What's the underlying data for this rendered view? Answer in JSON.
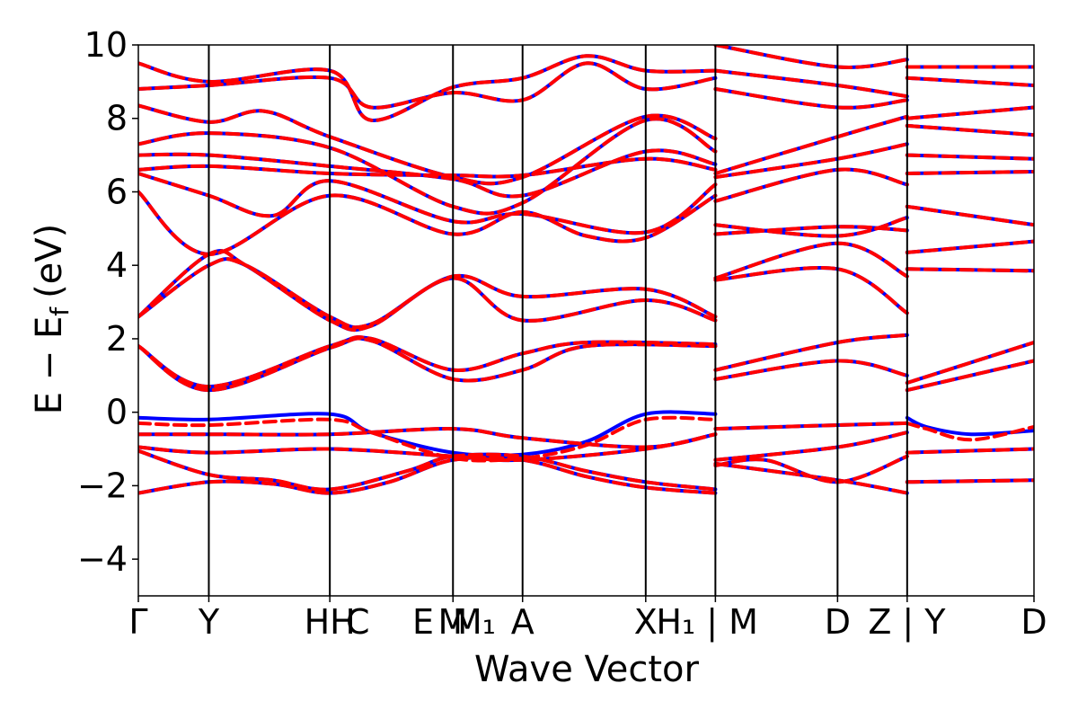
{
  "chart_data": {
    "type": "line",
    "xlabel": "Wave Vector",
    "ylabel": "E − E_f (eV)",
    "ylabel_main": "E − E",
    "ylabel_sub": "f",
    "ylabel_unit": "(eV)",
    "ylim": [
      -5,
      10
    ],
    "yticks": [
      10,
      8,
      6,
      4,
      2,
      0,
      -2,
      -4
    ],
    "ytick_labels": [
      "10",
      "8",
      "6",
      "4",
      "2",
      "0",
      "−2",
      "−4"
    ],
    "xlim": [
      0,
      1
    ],
    "kpoints": [
      {
        "label": "Γ",
        "pos": 0.0
      },
      {
        "label": "Y",
        "pos": 0.0787
      },
      {
        "label": "H|H",
        "pos": 0.2138
      },
      {
        "label": "C",
        "pos": 0.2138
      },
      {
        "label": "E|M",
        "pos": 0.3513
      },
      {
        "label": "M₁",
        "pos": 0.3513
      },
      {
        "label": "A",
        "pos": 0.429
      },
      {
        "label": "X",
        "pos": 0.5665
      },
      {
        "label": "H₁ | M",
        "pos": 0.6443
      },
      {
        "label": "D",
        "pos": 0.7807
      },
      {
        "label": "Z | Y",
        "pos": 0.8584
      },
      {
        "label": "D",
        "pos": 1.0
      }
    ],
    "tick_text": [
      {
        "text": "Γ",
        "pos": 0.0
      },
      {
        "text": "Y",
        "pos": 0.0787
      },
      {
        "text": "HH",
        "pos": 0.2138
      },
      {
        "text": "C",
        "pos": 0.245
      },
      {
        "text": "E",
        "pos": 0.318
      },
      {
        "text": "M",
        "pos": 0.351
      },
      {
        "text": "M₁",
        "pos": 0.375
      },
      {
        "text": "A",
        "pos": 0.429
      },
      {
        "text": "X",
        "pos": 0.5665
      },
      {
        "text": "H₁ | M",
        "pos": 0.635
      },
      {
        "text": "D",
        "pos": 0.7807
      },
      {
        "text": "Z | Y",
        "pos": 0.858
      },
      {
        "text": "D",
        "pos": 1.0
      }
    ],
    "segment_breaks": [
      0.6443,
      0.8584
    ],
    "series": [
      {
        "color": "#0000ff",
        "style": "solid"
      },
      {
        "color": "#ff0000",
        "style": "dashed"
      }
    ],
    "bands": {
      "blue_only_diff": [
        [
          [
            0,
            -0.15
          ],
          [
            0.0787,
            -0.2
          ],
          [
            0.2138,
            -0.05
          ],
          [
            0.26,
            -0.55
          ],
          [
            0.3513,
            -1.1
          ],
          [
            0.429,
            -1.15
          ],
          [
            0.5,
            -0.8
          ],
          [
            0.5665,
            -0.05
          ],
          [
            0.6443,
            -0.05
          ]
        ],
        [
          [
            0.8584,
            -0.15
          ],
          [
            0.88,
            -0.4
          ],
          [
            0.93,
            -0.6
          ],
          [
            1.0,
            -0.5
          ]
        ]
      ],
      "red_only_diff": [
        [
          [
            0,
            -0.3
          ],
          [
            0.0787,
            -0.35
          ],
          [
            0.2138,
            -0.2
          ],
          [
            0.26,
            -0.55
          ],
          [
            0.3513,
            -1.25
          ],
          [
            0.429,
            -1.25
          ],
          [
            0.5,
            -0.9
          ],
          [
            0.5665,
            -0.2
          ],
          [
            0.6443,
            -0.2
          ]
        ],
        [
          [
            0.8584,
            -0.3
          ],
          [
            0.88,
            -0.45
          ],
          [
            0.93,
            -0.75
          ],
          [
            1.0,
            -0.4
          ]
        ]
      ],
      "shared": [
        [
          [
            0,
            -2.2
          ],
          [
            0.0787,
            -1.9
          ],
          [
            0.15,
            -1.95
          ],
          [
            0.2138,
            -2.2
          ],
          [
            0.28,
            -1.9
          ],
          [
            0.3513,
            -1.3
          ],
          [
            0.429,
            -1.3
          ],
          [
            0.5,
            -1.75
          ],
          [
            0.5665,
            -2.05
          ],
          [
            0.6443,
            -2.2
          ]
        ],
        [
          [
            0,
            -1.05
          ],
          [
            0.0787,
            -1.7
          ],
          [
            0.15,
            -1.85
          ],
          [
            0.2138,
            -2.1
          ],
          [
            0.3,
            -1.6
          ],
          [
            0.3513,
            -1.2
          ],
          [
            0.429,
            -1.2
          ],
          [
            0.5,
            -1.6
          ],
          [
            0.5665,
            -1.9
          ],
          [
            0.6443,
            -2.1
          ]
        ],
        [
          [
            0,
            -0.95
          ],
          [
            0.0787,
            -1.1
          ],
          [
            0.2138,
            -1.0
          ],
          [
            0.3513,
            -1.2
          ],
          [
            0.429,
            -1.3
          ],
          [
            0.5665,
            -1.0
          ],
          [
            0.6443,
            -0.6
          ]
        ],
        [
          [
            0,
            -0.6
          ],
          [
            0.0787,
            -0.6
          ],
          [
            0.2138,
            -0.6
          ],
          [
            0.3513,
            -0.45
          ],
          [
            0.429,
            -0.7
          ],
          [
            0.5665,
            -0.95
          ],
          [
            0.6443,
            -0.6
          ]
        ],
        [
          [
            0,
            1.8
          ],
          [
            0.0787,
            0.7
          ],
          [
            0.2138,
            1.8
          ],
          [
            0.26,
            2.0
          ],
          [
            0.3513,
            1.15
          ],
          [
            0.429,
            1.6
          ],
          [
            0.5,
            1.9
          ],
          [
            0.6443,
            1.85
          ]
        ],
        [
          [
            0,
            1.8
          ],
          [
            0.0787,
            0.6
          ],
          [
            0.2138,
            1.75
          ],
          [
            0.26,
            1.95
          ],
          [
            0.3513,
            0.9
          ],
          [
            0.429,
            1.15
          ],
          [
            0.5,
            1.8
          ],
          [
            0.6443,
            1.8
          ]
        ],
        [
          [
            0,
            2.6
          ],
          [
            0.0787,
            4.0
          ],
          [
            0.12,
            4.0
          ],
          [
            0.2138,
            2.6
          ],
          [
            0.26,
            2.4
          ],
          [
            0.3513,
            3.7
          ],
          [
            0.429,
            3.15
          ],
          [
            0.5665,
            3.35
          ],
          [
            0.6443,
            2.6
          ]
        ],
        [
          [
            0,
            2.6
          ],
          [
            0.0787,
            4.3
          ],
          [
            0.12,
            4.0
          ],
          [
            0.2138,
            2.5
          ],
          [
            0.26,
            2.35
          ],
          [
            0.3513,
            3.65
          ],
          [
            0.429,
            2.5
          ],
          [
            0.5665,
            3.05
          ],
          [
            0.6443,
            2.5
          ]
        ],
        [
          [
            0,
            6.0
          ],
          [
            0.0787,
            4.3
          ],
          [
            0.2138,
            5.9
          ],
          [
            0.3513,
            4.85
          ],
          [
            0.429,
            5.45
          ],
          [
            0.5,
            4.8
          ],
          [
            0.5665,
            4.75
          ],
          [
            0.6443,
            5.9
          ]
        ],
        [
          [
            0,
            6.5
          ],
          [
            0.0787,
            5.9
          ],
          [
            0.15,
            5.35
          ],
          [
            0.2138,
            6.3
          ],
          [
            0.3513,
            5.2
          ],
          [
            0.429,
            5.4
          ],
          [
            0.5665,
            4.9
          ],
          [
            0.6443,
            6.2
          ]
        ],
        [
          [
            0,
            6.6
          ],
          [
            0.0787,
            6.7
          ],
          [
            0.2138,
            6.5
          ],
          [
            0.3513,
            6.45
          ],
          [
            0.429,
            6.45
          ],
          [
            0.5665,
            6.9
          ],
          [
            0.6443,
            6.6
          ]
        ],
        [
          [
            0,
            7.0
          ],
          [
            0.0787,
            7.0
          ],
          [
            0.2138,
            6.7
          ],
          [
            0.3513,
            6.35
          ],
          [
            0.429,
            5.9
          ],
          [
            0.5665,
            7.1
          ],
          [
            0.6443,
            6.75
          ]
        ],
        [
          [
            0,
            7.3
          ],
          [
            0.0787,
            7.6
          ],
          [
            0.2138,
            7.2
          ],
          [
            0.3513,
            5.6
          ],
          [
            0.429,
            5.7
          ],
          [
            0.5665,
            7.95
          ],
          [
            0.6443,
            7.1
          ]
        ],
        [
          [
            0,
            8.35
          ],
          [
            0.0787,
            7.9
          ],
          [
            0.14,
            8.2
          ],
          [
            0.2138,
            7.5
          ],
          [
            0.3513,
            6.4
          ],
          [
            0.429,
            6.4
          ],
          [
            0.5665,
            8.05
          ],
          [
            0.6443,
            7.45
          ]
        ],
        [
          [
            0,
            8.8
          ],
          [
            0.0787,
            8.9
          ],
          [
            0.2138,
            9.1
          ],
          [
            0.26,
            8.3
          ],
          [
            0.3513,
            8.7
          ],
          [
            0.429,
            8.5
          ],
          [
            0.5,
            9.5
          ],
          [
            0.5665,
            8.8
          ],
          [
            0.6443,
            9.1
          ]
        ],
        [
          [
            0,
            9.5
          ],
          [
            0.0787,
            9.0
          ],
          [
            0.2138,
            9.3
          ],
          [
            0.26,
            7.95
          ],
          [
            0.3513,
            8.85
          ],
          [
            0.429,
            9.1
          ],
          [
            0.5,
            9.7
          ],
          [
            0.5665,
            9.3
          ],
          [
            0.6443,
            9.3
          ]
        ],
        [
          [
            0.6443,
            -0.45
          ],
          [
            0.7807,
            -0.35
          ],
          [
            0.8584,
            -0.3
          ]
        ],
        [
          [
            0.6443,
            -1.3
          ],
          [
            0.7807,
            -0.95
          ],
          [
            0.8584,
            -0.55
          ]
        ],
        [
          [
            0.6443,
            -1.45
          ],
          [
            0.7,
            -1.3
          ],
          [
            0.7807,
            -1.9
          ],
          [
            0.8584,
            -1.2
          ]
        ],
        [
          [
            0.6443,
            -1.4
          ],
          [
            0.7807,
            -1.85
          ],
          [
            0.8584,
            -2.2
          ]
        ],
        [
          [
            0.6443,
            0.9
          ],
          [
            0.7807,
            1.4
          ],
          [
            0.8584,
            1.0
          ]
        ],
        [
          [
            0.6443,
            1.15
          ],
          [
            0.7807,
            1.9
          ],
          [
            0.8584,
            2.1
          ]
        ],
        [
          [
            0.6443,
            3.6
          ],
          [
            0.7807,
            3.9
          ],
          [
            0.8584,
            2.7
          ]
        ],
        [
          [
            0.6443,
            3.65
          ],
          [
            0.7807,
            4.6
          ],
          [
            0.8584,
            3.7
          ]
        ],
        [
          [
            0.6443,
            4.85
          ],
          [
            0.7807,
            5.05
          ],
          [
            0.8584,
            4.95
          ]
        ],
        [
          [
            0.6443,
            5.1
          ],
          [
            0.7807,
            4.8
          ],
          [
            0.8584,
            5.3
          ]
        ],
        [
          [
            0.6443,
            5.75
          ],
          [
            0.7807,
            6.6
          ],
          [
            0.8584,
            6.2
          ]
        ],
        [
          [
            0.6443,
            6.4
          ],
          [
            0.7807,
            6.9
          ],
          [
            0.8584,
            7.3
          ]
        ],
        [
          [
            0.6443,
            6.5
          ],
          [
            0.7807,
            7.5
          ],
          [
            0.8584,
            8.05
          ]
        ],
        [
          [
            0.6443,
            8.8
          ],
          [
            0.7807,
            8.3
          ],
          [
            0.8584,
            8.5
          ]
        ],
        [
          [
            0.6443,
            9.3
          ],
          [
            0.7807,
            8.9
          ],
          [
            0.8584,
            8.6
          ]
        ],
        [
          [
            0.6443,
            10.0
          ],
          [
            0.7807,
            9.4
          ],
          [
            0.8584,
            9.6
          ]
        ],
        [
          [
            0.8584,
            -1.1
          ],
          [
            1.0,
            -1.0
          ]
        ],
        [
          [
            0.8584,
            -1.9
          ],
          [
            1.0,
            -1.85
          ]
        ],
        [
          [
            0.8584,
            0.6
          ],
          [
            1.0,
            1.4
          ]
        ],
        [
          [
            0.8584,
            0.8
          ],
          [
            1.0,
            1.9
          ]
        ],
        [
          [
            0.8584,
            3.9
          ],
          [
            1.0,
            3.85
          ]
        ],
        [
          [
            0.8584,
            4.35
          ],
          [
            1.0,
            4.65
          ]
        ],
        [
          [
            0.8584,
            5.6
          ],
          [
            1.0,
            5.1
          ]
        ],
        [
          [
            0.8584,
            6.5
          ],
          [
            1.0,
            6.55
          ]
        ],
        [
          [
            0.8584,
            7.0
          ],
          [
            1.0,
            6.9
          ]
        ],
        [
          [
            0.8584,
            7.8
          ],
          [
            1.0,
            7.55
          ]
        ],
        [
          [
            0.8584,
            8.0
          ],
          [
            1.0,
            8.3
          ]
        ],
        [
          [
            0.8584,
            9.1
          ],
          [
            1.0,
            8.9
          ]
        ],
        [
          [
            0.8584,
            9.4
          ],
          [
            1.0,
            9.4
          ]
        ]
      ]
    }
  }
}
